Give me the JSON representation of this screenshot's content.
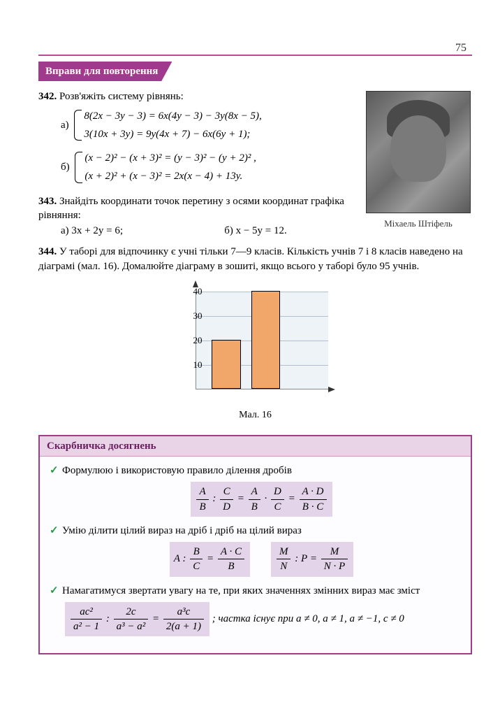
{
  "page_number": "75",
  "section_title": "Вправи для повторення",
  "portrait": {
    "caption": "Міхаель Штіфель"
  },
  "p342": {
    "num": "342.",
    "text": "Розв'яжіть систему рівнянь:",
    "a_label": "а)",
    "a_eq1": "8(2x − 3y − 3) = 6x(4y − 3) − 3y(8x − 5),",
    "a_eq2": "3(10x + 3y) = 9y(4x + 7) − 6x(6y + 1);",
    "b_label": "б)",
    "b_eq1": "(x − 2)² − (x + 3)² = (y − 3)² − (y + 2)² ,",
    "b_eq2": "(x + 2)² + (x − 3)² = 2x(x − 4) + 13y."
  },
  "p343": {
    "num": "343.",
    "text": "Знайдіть координати точок перетину з осями координат графіка рівняння:",
    "a": "а) 3x + 2y = 6;",
    "b": "б) x − 5y = 12."
  },
  "p344": {
    "num": "344.",
    "text": "У таборі для відпочинку є учні тільки 7—9 класів. Кількість учнів 7 і 8 класів наведено на діаграмі (мал. 16). Домалюйте діаграму в зошиті, якщо всього у таборі було 95 учнів."
  },
  "chart": {
    "type": "bar",
    "caption": "Мал. 16",
    "ylim": [
      0,
      40
    ],
    "ytick_step": 10,
    "yticks": [
      "10",
      "20",
      "30",
      "40"
    ],
    "background_color": "#eef3f8",
    "grid_color": "#b0c0d0",
    "bars": [
      {
        "value": 20,
        "color": "#f2a76a",
        "left_pct": 12,
        "width_pct": 22
      },
      {
        "value": 40,
        "color": "#f2a76a",
        "left_pct": 42,
        "width_pct": 22
      },
      {
        "value": 0,
        "color": "#ffffff",
        "left_pct": 72,
        "width_pct": 22
      }
    ]
  },
  "treasure": {
    "title": "Скарбничка досягнень",
    "item1": "Формулюю і використовую правило  ділення    дробів",
    "f1_A": "A",
    "f1_B": "B",
    "f1_C": "C",
    "f1_D": "D",
    "f1_num2": "A · D",
    "f1_den2": "B · C",
    "item2": "Умію ділити цілий вираз на дріб і дріб на цілий вираз",
    "f2_A": "A",
    "f2_Bnum": "B",
    "f2_Bden": "C",
    "f2_rnum": "A · C",
    "f2_rden": "B",
    "f2_M": "M",
    "f2_N": "N",
    "f2_P": "P",
    "f2_r2num": "M",
    "f2_r2den": "N · P",
    "item3": "Намагатимуся звертати увагу на те, при яких значеннях змінних вираз має зміст",
    "f3_l1num": "ac²",
    "f3_l1den": "a² − 1",
    "f3_l2num": "2c",
    "f3_l2den": "a³ − a²",
    "f3_rnum": "a³c",
    "f3_rden": "2(a + 1)",
    "f3_tail": "; частка існує при a ≠ 0, a ≠ 1, a ≠ −1, c ≠ 0"
  }
}
